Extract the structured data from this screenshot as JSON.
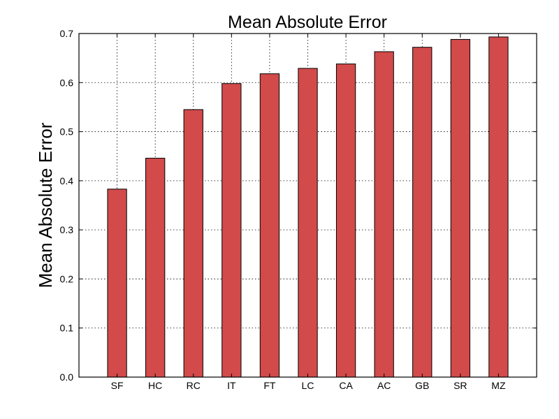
{
  "chart_data": {
    "type": "bar",
    "title": "Mean Absolute Error",
    "xlabel": "",
    "ylabel": "Mean Absolute Error",
    "categories": [
      "SF",
      "HC",
      "RC",
      "IT",
      "FT",
      "LC",
      "CA",
      "AC",
      "GB",
      "SR",
      "MZ"
    ],
    "values": [
      0.383,
      0.446,
      0.545,
      0.598,
      0.618,
      0.629,
      0.638,
      0.663,
      0.672,
      0.688,
      0.693
    ],
    "ylim": [
      0,
      0.7
    ],
    "yticks": [
      "0.0",
      "0.1",
      "0.2",
      "0.3",
      "0.4",
      "0.5",
      "0.6",
      "0.7"
    ],
    "grid": true,
    "bar_color": "#d24a4a"
  }
}
